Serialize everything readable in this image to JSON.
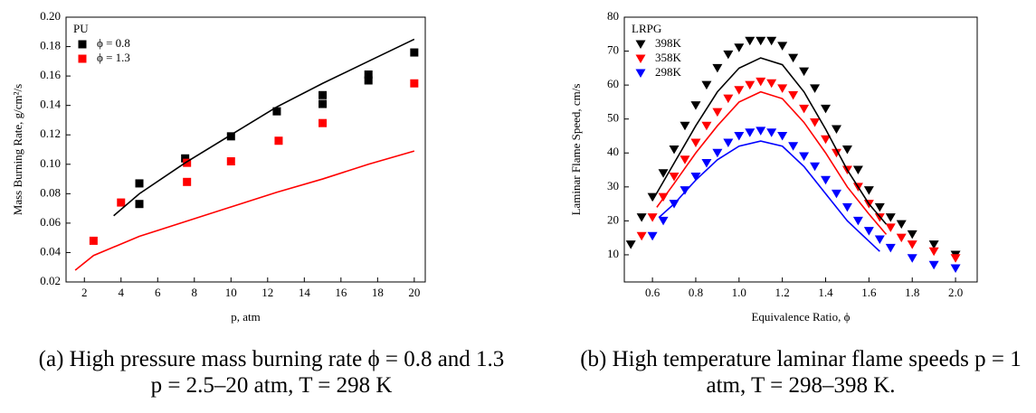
{
  "chart_data": [
    {
      "type": "scatter",
      "legend_title": "PU",
      "legend": "upper left",
      "x_label": "p, atm",
      "y_label": "Mass Burning Rate, g/cm²/s",
      "caption": "(a)  High pressure mass burning rate ϕ = 0.8 and 1.3 p = 2.5–20 atm, T = 298 K",
      "xlim": [
        1,
        20.6
      ],
      "ylim": [
        0.02,
        0.2
      ],
      "xticks": [
        2,
        4,
        6,
        8,
        10,
        12,
        14,
        16,
        18,
        20
      ],
      "yticks": [
        0.02,
        0.04,
        0.06,
        0.08,
        {
          "value": 0.1,
          "label": "0.10"
        },
        0.12,
        0.14,
        0.16,
        0.18,
        {
          "value": 0.2,
          "label": "0.20"
        }
      ],
      "series": [
        {
          "name": "ϕ = 0.8",
          "color": "#000000",
          "marker": "square",
          "x": [
            5,
            5,
            7.5,
            10,
            12.5,
            15,
            15,
            17.5,
            17.5,
            20
          ],
          "values": [
            0.087,
            0.073,
            0.104,
            0.119,
            0.136,
            0.147,
            0.141,
            0.161,
            0.157,
            0.176
          ]
        },
        {
          "name": "ϕ = 1.3",
          "color": "#ff0000",
          "marker": "square",
          "x": [
            2.5,
            4,
            7.6,
            7.6,
            10,
            12.6,
            15,
            20
          ],
          "values": [
            0.048,
            0.074,
            0.101,
            0.088,
            0.102,
            0.116,
            0.128,
            0.155
          ]
        },
        {
          "mode": "line",
          "color": "#000000",
          "x": [
            3.6,
            5,
            7.5,
            10,
            12.5,
            15,
            17.5,
            20
          ],
          "values": [
            0.065,
            0.08,
            0.101,
            0.12,
            0.139,
            0.155,
            0.17,
            0.185
          ]
        },
        {
          "mode": "line",
          "color": "#ff0000",
          "x": [
            1.5,
            2.5,
            5,
            7.5,
            10,
            12.5,
            15,
            17.5,
            20
          ],
          "values": [
            0.028,
            0.038,
            0.051,
            0.061,
            0.071,
            0.081,
            0.09,
            0.1,
            0.109
          ]
        }
      ]
    },
    {
      "type": "scatter",
      "legend_title": "LRPG",
      "legend": "upper left",
      "x_label": "Equivalence Ratio, ϕ",
      "y_label": "Laminar Flame Speed, cm/s",
      "caption": "(b)  High temperature laminar flame speeds p = 1 atm, T = 298–398 K.",
      "xlim": [
        0.47,
        2.1
      ],
      "ylim": [
        2,
        80
      ],
      "xticks": [
        0.6,
        0.8,
        {
          "value": 1,
          "label": "1.0"
        },
        1.2,
        1.4,
        1.6,
        1.8,
        {
          "value": 2,
          "label": "2.0"
        }
      ],
      "yticks": [
        10,
        20,
        30,
        40,
        50,
        60,
        70,
        80
      ],
      "series": [
        {
          "name": "398K",
          "color": "#000000",
          "marker": "triangle-down",
          "x": [
            0.5,
            0.55,
            0.6,
            0.65,
            0.7,
            0.75,
            0.8,
            0.85,
            0.9,
            0.95,
            1.0,
            1.05,
            1.1,
            1.15,
            1.2,
            1.25,
            1.3,
            1.35,
            1.4,
            1.45,
            1.5,
            1.55,
            1.6,
            1.65,
            1.7,
            1.75,
            1.8,
            1.9,
            2.0
          ],
          "values": [
            13,
            21,
            27,
            34,
            41,
            48,
            54,
            60,
            65,
            69,
            71,
            73,
            73,
            73,
            71.5,
            68,
            64,
            59,
            53,
            47,
            41,
            35,
            29,
            24,
            21,
            19,
            16,
            13,
            10
          ]
        },
        {
          "name": "358K",
          "color": "#ff0000",
          "marker": "triangle-down",
          "x": [
            0.55,
            0.6,
            0.65,
            0.7,
            0.75,
            0.8,
            0.85,
            0.9,
            0.95,
            1.0,
            1.05,
            1.1,
            1.15,
            1.2,
            1.25,
            1.3,
            1.35,
            1.4,
            1.45,
            1.5,
            1.55,
            1.6,
            1.65,
            1.7,
            1.75,
            1.8,
            1.9,
            2.0
          ],
          "values": [
            15.5,
            21,
            27,
            33,
            38,
            43,
            48,
            52,
            56,
            58.5,
            60,
            61,
            60.5,
            59,
            57,
            53,
            49,
            44,
            40,
            35,
            30,
            25,
            21,
            18,
            15,
            13,
            11,
            9
          ]
        },
        {
          "name": "298K",
          "color": "#0000ff",
          "marker": "triangle-down",
          "x": [
            0.6,
            0.65,
            0.7,
            0.75,
            0.8,
            0.85,
            0.9,
            0.95,
            1.0,
            1.05,
            1.1,
            1.15,
            1.2,
            1.25,
            1.3,
            1.35,
            1.4,
            1.45,
            1.5,
            1.55,
            1.6,
            1.65,
            1.7,
            1.8,
            1.9,
            2.0
          ],
          "values": [
            15.5,
            20,
            25,
            29,
            33,
            37,
            40,
            43,
            45,
            46,
            46.5,
            46,
            45,
            42,
            39,
            36,
            32,
            28,
            24,
            20,
            17,
            14.5,
            12,
            9,
            7,
            6
          ]
        },
        {
          "mode": "line",
          "color": "#000000",
          "x": [
            0.6,
            0.7,
            0.8,
            0.9,
            1.0,
            1.1,
            1.2,
            1.3,
            1.4,
            1.5,
            1.6,
            1.68
          ],
          "values": [
            26,
            37,
            48,
            58,
            65,
            68,
            66,
            58,
            47,
            35,
            25,
            19
          ]
        },
        {
          "mode": "line",
          "color": "#ff0000",
          "x": [
            0.62,
            0.7,
            0.8,
            0.9,
            1.0,
            1.1,
            1.2,
            1.3,
            1.4,
            1.5,
            1.6,
            1.68
          ],
          "values": [
            24,
            31,
            40,
            48,
            55,
            58,
            56,
            49,
            40,
            30,
            22,
            16
          ]
        },
        {
          "mode": "line",
          "color": "#0000ff",
          "x": [
            0.63,
            0.7,
            0.8,
            0.9,
            1.0,
            1.1,
            1.2,
            1.3,
            1.4,
            1.5,
            1.6,
            1.65
          ],
          "values": [
            21,
            25,
            32,
            38,
            42,
            43.5,
            42,
            36,
            28,
            20,
            14,
            11
          ]
        }
      ]
    }
  ]
}
